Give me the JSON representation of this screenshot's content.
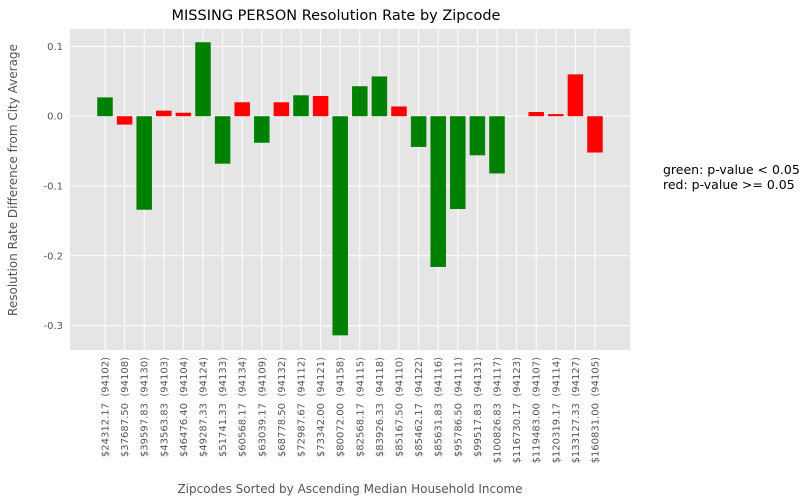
{
  "chart_data": {
    "type": "bar",
    "title": "MISSING PERSON Resolution Rate by Zipcode",
    "xlabel": "Zipcodes Sorted by Ascending Median Household Income",
    "ylabel": "Resolution Rate Difference from City Average",
    "ylim": [
      -0.335,
      0.125
    ],
    "yticks": [
      {
        "value": 0.1,
        "label": "0.1"
      },
      {
        "value": 0.0,
        "label": "0.0"
      },
      {
        "value": -0.1,
        "label": "-0.1"
      },
      {
        "value": -0.2,
        "label": "-0.2"
      },
      {
        "value": -0.3,
        "label": "-0.3"
      }
    ],
    "grid": true,
    "categories": [
      "$24312.17  (94102)",
      "$37687.50  (94108)",
      "$39597.83  (94130)",
      "$43563.83  (94103)",
      "$46476.40  (94104)",
      "$49287.33  (94124)",
      "$51741.33  (94133)",
      "$60568.17  (94134)",
      "$63039.17  (94109)",
      "$68778.50  (94132)",
      "$72987.67  (94112)",
      "$73342.00  (94121)",
      "$80072.00  (94158)",
      "$82568.17  (94115)",
      "$83926.33  (94118)",
      "$85167.50  (94110)",
      "$85462.17  (94122)",
      "$85631.83  (94116)",
      "$95786.50  (94111)",
      "$99517.83  (94131)",
      "$100826.83  (94117)",
      "$116730.17  (94123)",
      "$119483.00  (94107)",
      "$120319.17  (94114)",
      "$133127.33  (94127)",
      "$160831.00  (94105)"
    ],
    "values": [
      0.027,
      -0.012,
      -0.134,
      0.008,
      0.005,
      0.106,
      -0.068,
      0.02,
      -0.038,
      0.02,
      0.03,
      0.029,
      -0.314,
      0.043,
      0.057,
      0.014,
      -0.044,
      -0.216,
      -0.133,
      -0.056,
      -0.082,
      0.0,
      0.006,
      0.003,
      0.06,
      -0.052
    ],
    "significant": [
      true,
      false,
      true,
      false,
      false,
      true,
      true,
      false,
      true,
      false,
      true,
      false,
      true,
      true,
      true,
      false,
      true,
      true,
      true,
      true,
      true,
      false,
      false,
      false,
      false,
      false
    ],
    "colors": {
      "significant": "#008000",
      "not_significant": "#ff0000",
      "plot_background": "#e5e5e5",
      "grid": "#ffffff"
    }
  },
  "legend_text": {
    "line1": "green: p-value < 0.05",
    "line2": "red: p-value >= 0.05"
  }
}
